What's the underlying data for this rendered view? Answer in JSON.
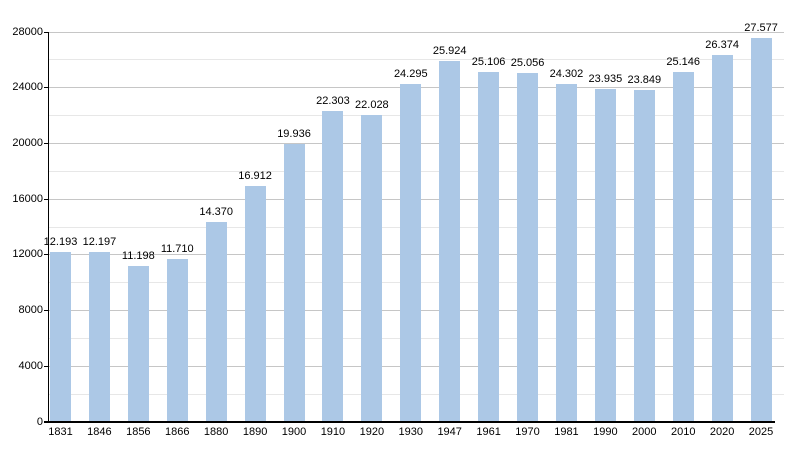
{
  "chart_data": {
    "type": "bar",
    "categories": [
      "1831",
      "1846",
      "1856",
      "1866",
      "1880",
      "1890",
      "1900",
      "1910",
      "1920",
      "1930",
      "1947",
      "1961",
      "1970",
      "1981",
      "1990",
      "2000",
      "2010",
      "2020",
      "2025"
    ],
    "values": [
      12193,
      12197,
      11198,
      11710,
      14370,
      16912,
      19936,
      22303,
      22028,
      24295,
      25924,
      25106,
      25056,
      24302,
      23935,
      23849,
      25146,
      26374,
      27577
    ],
    "value_labels": [
      "12.193",
      "12.197",
      "11.198",
      "11.710",
      "14.370",
      "16.912",
      "19.936",
      "22.303",
      "22.028",
      "24.295",
      "25.924",
      "25.106",
      "25.056",
      "24.302",
      "23.935",
      "23.849",
      "25.146",
      "26.374",
      "27.577"
    ],
    "y_axis": {
      "min": 0,
      "max": 28000,
      "major_step": 4000,
      "minor_step": 2000,
      "tick_labels": [
        "0",
        "4000",
        "8000",
        "12000",
        "16000",
        "20000",
        "24000",
        "28000"
      ]
    },
    "grid": "on",
    "legend": "none",
    "colors": {
      "bar": "#acc8e6",
      "major_grid": "#c6c6c6",
      "minor_grid": "#e7e7e7",
      "axis": "#000000",
      "text": "#000000",
      "background": "#ffffff"
    }
  }
}
